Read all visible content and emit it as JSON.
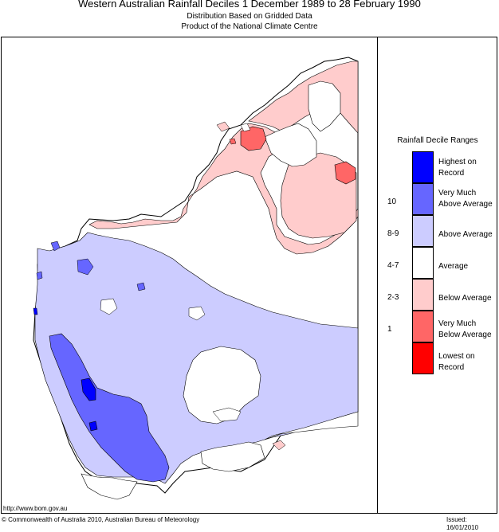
{
  "header": {
    "title": "Western Australian Rainfall Deciles      1 December 1989 to 28 February 1990",
    "subtitle1": "Distribution Based on Gridded Data",
    "subtitle2": "Product of the National Climate Centre"
  },
  "legend": {
    "title": "Rainfall Decile Ranges",
    "items": [
      {
        "label": "Highest on Record",
        "range": "",
        "color": "#0000ff"
      },
      {
        "label": "Very Much Above Average",
        "range": "10",
        "color": "#6666ff"
      },
      {
        "label": "Above Average",
        "range": "8-9",
        "color": "#ccccff"
      },
      {
        "label": "Average",
        "range": "4-7",
        "color": "#ffffff"
      },
      {
        "label": "Below Average",
        "range": "2-3",
        "color": "#ffcccc"
      },
      {
        "label": "Very Much Below Average",
        "range": "1",
        "color": "#ff6666"
      },
      {
        "label": "Lowest on Record",
        "range": "",
        "color": "#ff0000"
      }
    ]
  },
  "footer": {
    "url": "http://www.bom.gov.au",
    "copyright": "© Commonwealth of Australia 2010, Australian Bureau of Meteorology",
    "issued": "Issued: 16/01/2010"
  }
}
